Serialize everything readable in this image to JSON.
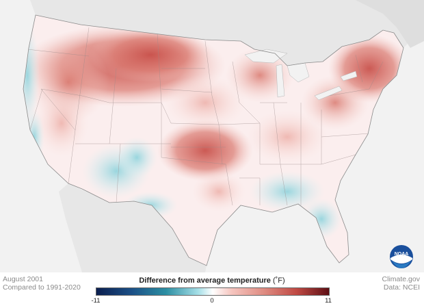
{
  "map": {
    "period": "August 2001",
    "baseline": "Compared to 1991-2020",
    "source_site": "Climate.gov",
    "source_data": "Data: NCEI",
    "legend": {
      "title": "Difference from average temperature",
      "unit": "(˚F)",
      "min_label": "-11",
      "mid_label": "0",
      "max_label": "11",
      "min": -11,
      "max": 11
    },
    "logo_text": "NOAA",
    "colors": {
      "background_land": "#e9e9e9",
      "water": "#f4f4f4",
      "cold": "#2c8fa3",
      "warm": "#c04a44",
      "neutral": "#ffffff"
    }
  }
}
